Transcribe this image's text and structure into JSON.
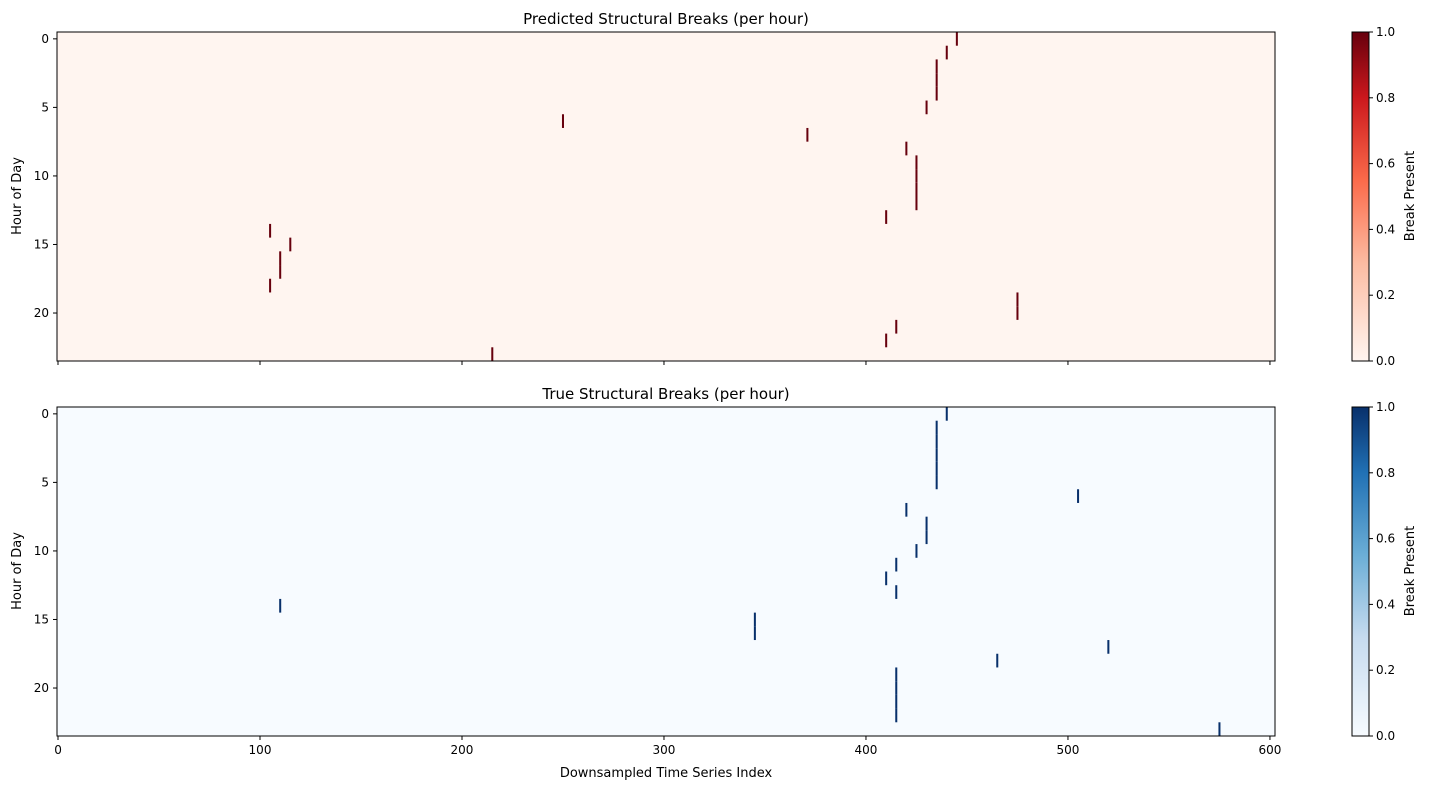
{
  "chart_data": [
    {
      "type": "heatmap",
      "title": "Predicted Structural Breaks (per hour)",
      "ylabel": "Hour of Day",
      "xlabel": "",
      "xlim": [
        -0.5,
        602.5
      ],
      "ylim": [
        -0.5,
        23.5
      ],
      "y_inverted": true,
      "xticks": [
        0,
        100,
        200,
        300,
        400,
        500,
        600
      ],
      "xtick_labels_visible": false,
      "yticks": [
        0,
        5,
        10,
        15,
        20
      ],
      "colormap": "Reds",
      "colors": {
        "low": "#fff5f0",
        "high": "#67000d",
        "frame": "#000000"
      },
      "colorbar": {
        "label": "Break Present",
        "range": [
          0,
          1
        ],
        "ticks": [
          0.0,
          0.2,
          0.4,
          0.6,
          0.8,
          1.0
        ],
        "tick_labels": [
          "0.0",
          "0.2",
          "0.4",
          "0.6",
          "0.8",
          "1.0"
        ]
      },
      "breaks": [
        {
          "x": 445,
          "hours": [
            0
          ]
        },
        {
          "x": 440,
          "hours": [
            1
          ]
        },
        {
          "x": 435,
          "hours": [
            2,
            3,
            4
          ]
        },
        {
          "x": 430,
          "hours": [
            5
          ]
        },
        {
          "x": 250,
          "hours": [
            6
          ]
        },
        {
          "x": 371,
          "hours": [
            7
          ]
        },
        {
          "x": 420,
          "hours": [
            8
          ]
        },
        {
          "x": 425,
          "hours": [
            9,
            10,
            11,
            12
          ]
        },
        {
          "x": 410,
          "hours": [
            13
          ]
        },
        {
          "x": 105,
          "hours": [
            14
          ]
        },
        {
          "x": 115,
          "hours": [
            15
          ]
        },
        {
          "x": 110,
          "hours": [
            16,
            17
          ]
        },
        {
          "x": 105,
          "hours": [
            18
          ]
        },
        {
          "x": 475,
          "hours": [
            19,
            20
          ]
        },
        {
          "x": 415,
          "hours": [
            21
          ]
        },
        {
          "x": 410,
          "hours": [
            22
          ]
        },
        {
          "x": 215,
          "hours": [
            23
          ]
        }
      ]
    },
    {
      "type": "heatmap",
      "title": "True Structural Breaks (per hour)",
      "ylabel": "Hour of Day",
      "xlabel": "Downsampled Time Series Index",
      "xlim": [
        -0.5,
        602.5
      ],
      "ylim": [
        -0.5,
        23.5
      ],
      "y_inverted": true,
      "xticks": [
        0,
        100,
        200,
        300,
        400,
        500,
        600
      ],
      "xtick_labels_visible": true,
      "yticks": [
        0,
        5,
        10,
        15,
        20
      ],
      "colormap": "Blues",
      "colors": {
        "low": "#f7fbff",
        "high": "#08306b",
        "frame": "#000000"
      },
      "colorbar": {
        "label": "Break Present",
        "range": [
          0,
          1
        ],
        "ticks": [
          0.0,
          0.2,
          0.4,
          0.6,
          0.8,
          1.0
        ],
        "tick_labels": [
          "0.0",
          "0.2",
          "0.4",
          "0.6",
          "0.8",
          "1.0"
        ]
      },
      "breaks": [
        {
          "x": 440,
          "hours": [
            0
          ]
        },
        {
          "x": 435,
          "hours": [
            1,
            2,
            3,
            4,
            5
          ]
        },
        {
          "x": 505,
          "hours": [
            6
          ]
        },
        {
          "x": 420,
          "hours": [
            7
          ]
        },
        {
          "x": 430,
          "hours": [
            8,
            9
          ]
        },
        {
          "x": 425,
          "hours": [
            10
          ]
        },
        {
          "x": 415,
          "hours": [
            11
          ]
        },
        {
          "x": 410,
          "hours": [
            12
          ]
        },
        {
          "x": 415,
          "hours": [
            13
          ]
        },
        {
          "x": 110,
          "hours": [
            14
          ]
        },
        {
          "x": 345,
          "hours": [
            15,
            16
          ]
        },
        {
          "x": 520,
          "hours": [
            17
          ]
        },
        {
          "x": 465,
          "hours": [
            18
          ]
        },
        {
          "x": 415,
          "hours": [
            19,
            20,
            21,
            22
          ]
        },
        {
          "x": 575,
          "hours": [
            23
          ]
        }
      ]
    }
  ]
}
